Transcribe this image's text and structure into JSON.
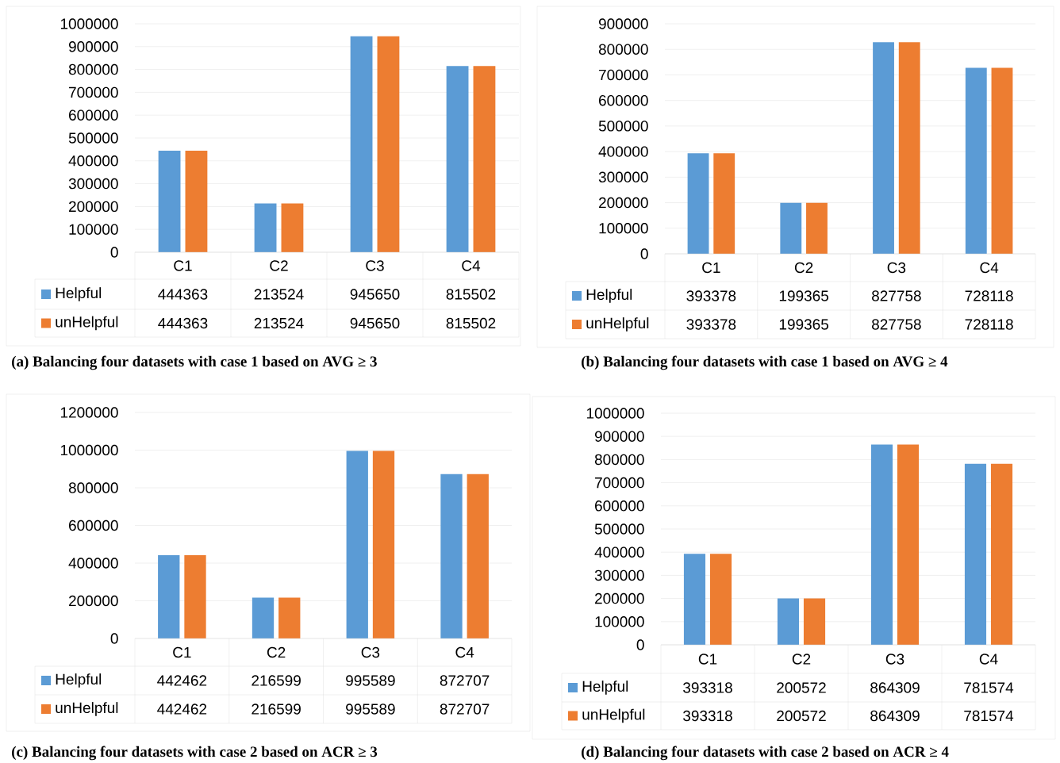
{
  "chart_data": [
    {
      "type": "bar",
      "title": "(a) Balancing four datasets with case 1 based on AVG ≥ 3",
      "categories": [
        "C1",
        "C2",
        "C3",
        "C4"
      ],
      "series": [
        {
          "name": "Helpful",
          "color": "#5b9bd5",
          "values": [
            444363,
            213524,
            945650,
            815502
          ]
        },
        {
          "name": "unHelpful",
          "color": "#ed7d31",
          "values": [
            444363,
            213524,
            945650,
            815502
          ]
        }
      ],
      "ylim": [
        0,
        1000000
      ],
      "yticks": [
        0,
        100000,
        200000,
        300000,
        400000,
        500000,
        600000,
        700000,
        800000,
        900000,
        1000000
      ],
      "grid": "y",
      "legend": "bottom",
      "data_labels": true
    },
    {
      "type": "bar",
      "title": "(b) Balancing four datasets with case 1 based on AVG ≥ 4",
      "categories": [
        "C1",
        "C2",
        "C3",
        "C4"
      ],
      "series": [
        {
          "name": "Helpful",
          "color": "#5b9bd5",
          "values": [
            393378,
            199365,
            827758,
            728118
          ]
        },
        {
          "name": "unHelpful",
          "color": "#ed7d31",
          "values": [
            393378,
            199365,
            827758,
            728118
          ]
        }
      ],
      "ylim": [
        0,
        900000
      ],
      "yticks": [
        0,
        100000,
        200000,
        300000,
        400000,
        500000,
        600000,
        700000,
        800000,
        900000
      ],
      "grid": "y",
      "legend": "bottom",
      "data_labels": true
    },
    {
      "type": "bar",
      "title": "(c) Balancing four datasets with case 2 based on ACR ≥ 3",
      "categories": [
        "C1",
        "C2",
        "C3",
        "C4"
      ],
      "series": [
        {
          "name": "Helpful",
          "color": "#5b9bd5",
          "values": [
            442462,
            216599,
            995589,
            872707
          ]
        },
        {
          "name": "unHelpful",
          "color": "#ed7d31",
          "values": [
            442462,
            216599,
            995589,
            872707
          ]
        }
      ],
      "ylim": [
        0,
        1200000
      ],
      "yticks": [
        0,
        200000,
        400000,
        600000,
        800000,
        1000000,
        1200000
      ],
      "grid": "y",
      "legend": "bottom",
      "data_labels": true
    },
    {
      "type": "bar",
      "title": "(d) Balancing four datasets with case 2 based on ACR ≥ 4",
      "categories": [
        "C1",
        "C2",
        "C3",
        "C4"
      ],
      "series": [
        {
          "name": "Helpful",
          "color": "#5b9bd5",
          "values": [
            393318,
            200572,
            864309,
            781574
          ]
        },
        {
          "name": "unHelpful",
          "color": "#ed7d31",
          "values": [
            393318,
            200572,
            864309,
            781574
          ]
        }
      ],
      "ylim": [
        0,
        1000000
      ],
      "yticks": [
        0,
        100000,
        200000,
        300000,
        400000,
        500000,
        600000,
        700000,
        800000,
        900000,
        1000000
      ],
      "grid": "y",
      "legend": "bottom",
      "data_labels": true
    }
  ]
}
